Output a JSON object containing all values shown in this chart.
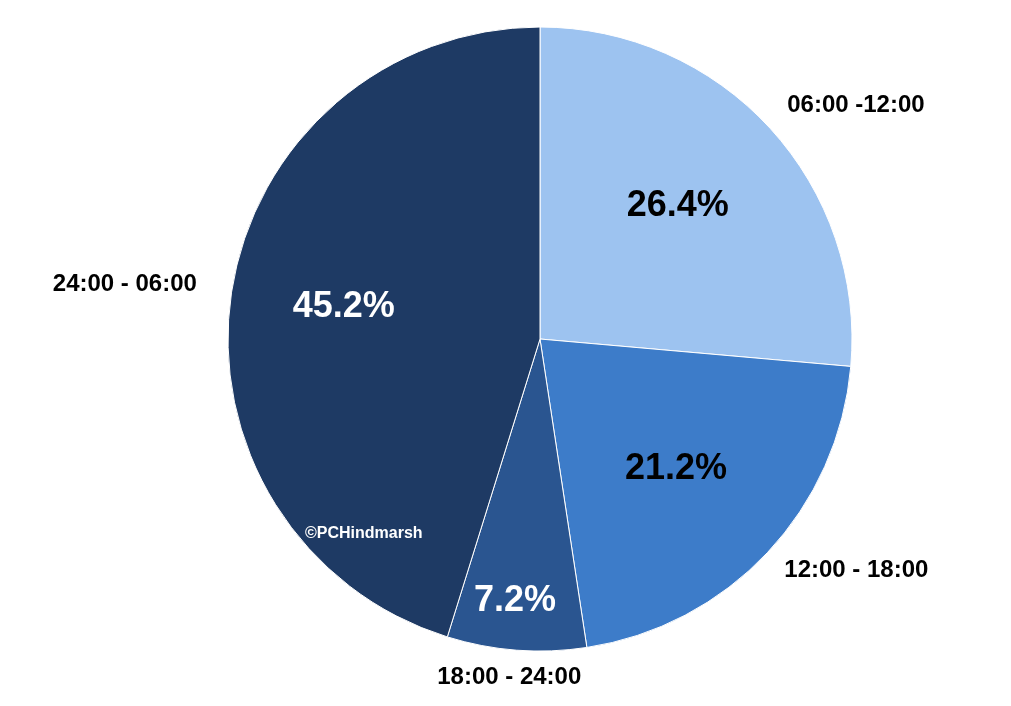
{
  "chart_data": {
    "type": "pie",
    "categories": [
      "06:00 -12:00",
      "12:00 - 18:00",
      "18:00 - 24:00",
      "24:00 - 06:00"
    ],
    "values": [
      26.4,
      21.2,
      7.2,
      45.2
    ],
    "colors": [
      "#9dc3f0",
      "#3d7cc9",
      "#2a5590",
      "#1e3a64"
    ],
    "value_labels": [
      "26.4%",
      "21.2%",
      "7.2%",
      "45.2%"
    ],
    "annotations": [
      "©PCHindmarsh"
    ]
  }
}
